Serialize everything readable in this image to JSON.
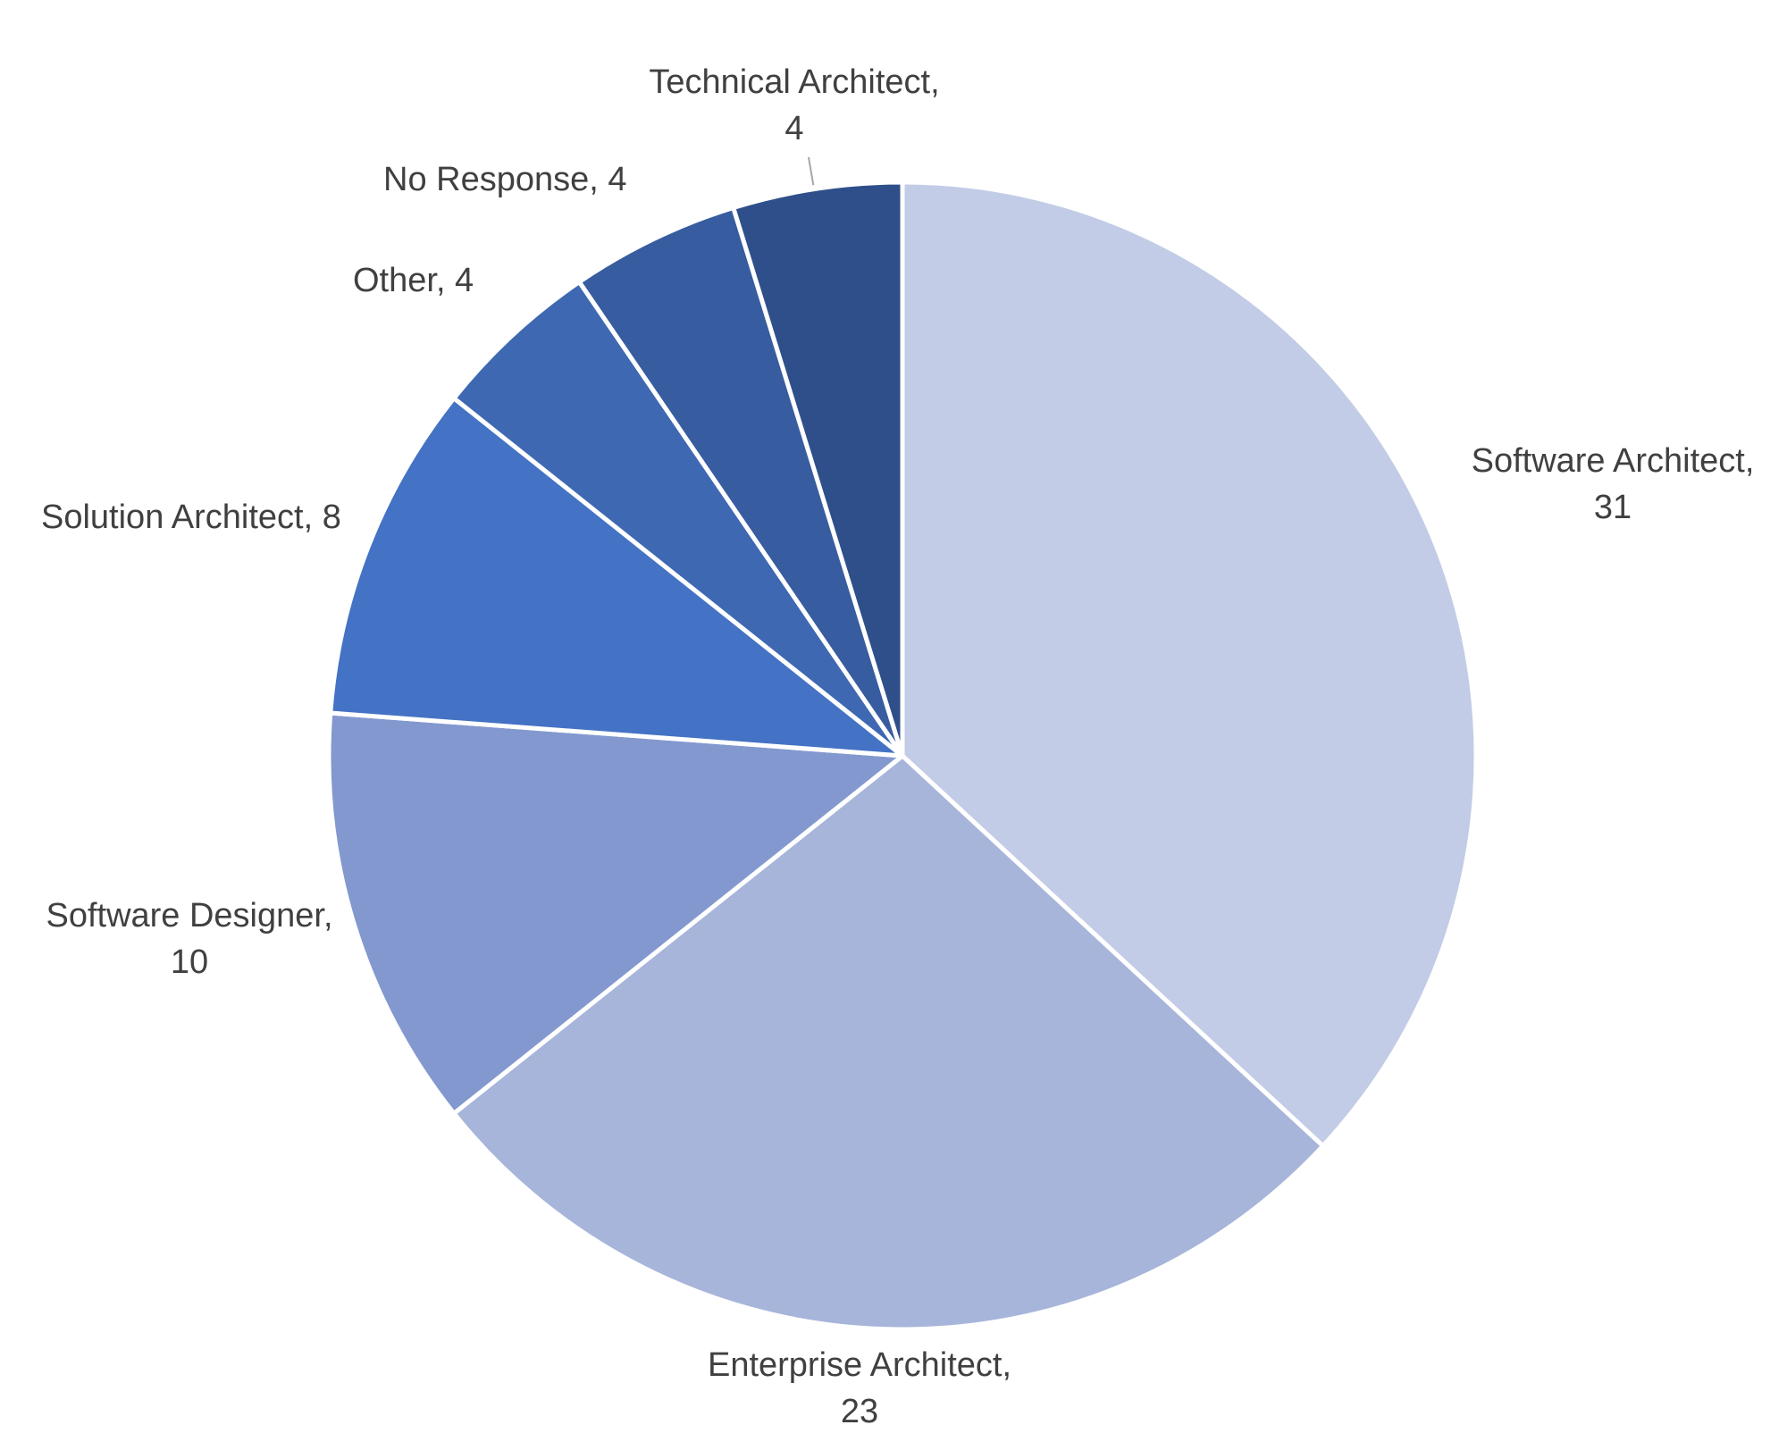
{
  "chart_data": {
    "type": "pie",
    "title": "",
    "start_angle_deg": 0,
    "direction": "clockwise",
    "legend": "none",
    "categories": [
      "Software Architect",
      "Enterprise Architect",
      "Software Designer",
      "Solution Architect",
      "Other",
      "No Response",
      "Technical Architect"
    ],
    "values": [
      31,
      23,
      10,
      8,
      4,
      4,
      4
    ],
    "colors": [
      "#c2cce6",
      "#a7b5da",
      "#8398cf",
      "#4472c4",
      "#3e68b2",
      "#375c9f",
      "#2f4f8a"
    ],
    "labels": [
      [
        "Software Architect,",
        "31"
      ],
      [
        "Enterprise Architect,",
        "23"
      ],
      [
        "Software Designer,",
        "10"
      ],
      [
        "Solution Architect, 8"
      ],
      [
        "Other, 4"
      ],
      [
        "No Response, 4"
      ],
      [
        "Technical Architect,",
        "4"
      ]
    ]
  }
}
